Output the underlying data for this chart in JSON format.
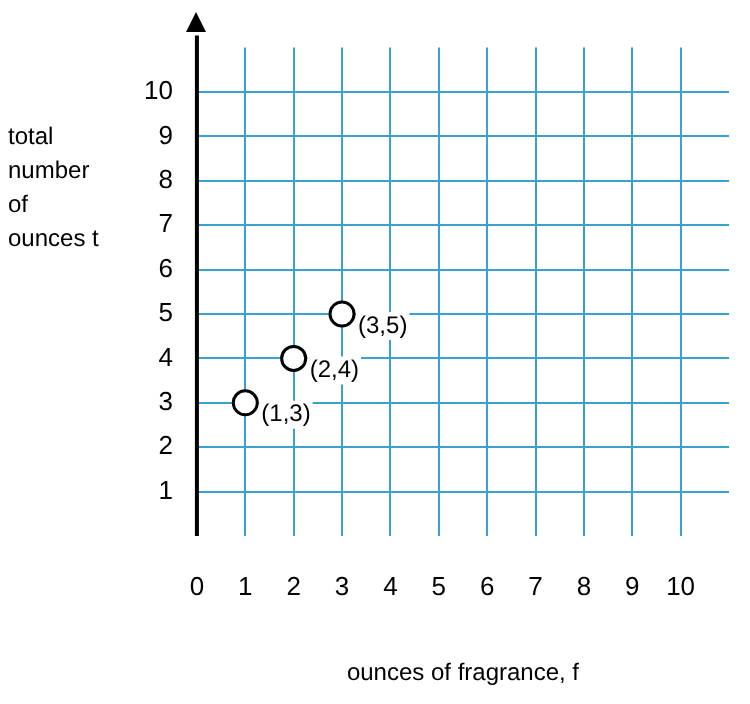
{
  "chart_data": {
    "type": "scatter",
    "xlabel": "ounces of fragrance, f",
    "ylabel": "total number of ounces t",
    "x": [
      1,
      2,
      3
    ],
    "values": [
      3,
      4,
      5
    ],
    "color": "#000000",
    "annotations": [
      {
        "text": "(1,3)",
        "x": 1,
        "y": 3
      },
      {
        "text": "(2,4)",
        "x": 2,
        "y": 4
      },
      {
        "text": "(3,5)",
        "x": 3,
        "y": 5
      }
    ],
    "marker": "circle",
    "grid": true,
    "legend": false,
    "xlim": [
      0,
      11
    ],
    "ylim": [
      0,
      11
    ],
    "xticks": [
      0,
      1,
      2,
      3,
      4,
      5,
      6,
      7,
      8,
      9,
      10
    ],
    "yticks": [
      1,
      2,
      3,
      4,
      5,
      6,
      7,
      8,
      9,
      10
    ]
  }
}
